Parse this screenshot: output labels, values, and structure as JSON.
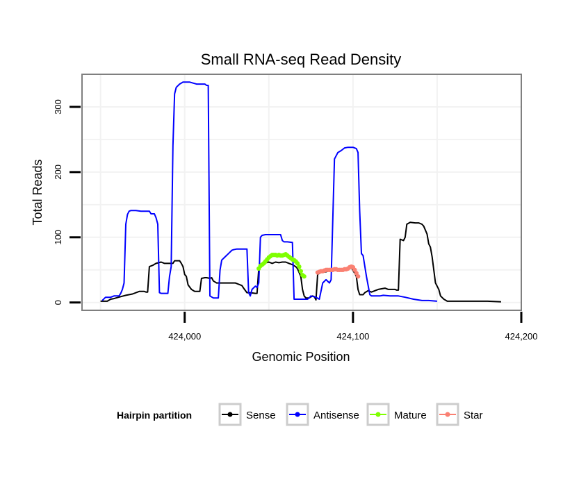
{
  "chart_data": {
    "type": "line",
    "title": "Small RNA-seq Read Density",
    "xlabel": "Genomic Position",
    "ylabel": "Total Reads",
    "xlim": [
      423939,
      424200
    ],
    "ylim": [
      -12,
      350
    ],
    "x_ticks": [
      424000,
      424100,
      424200
    ],
    "x_tick_labels": [
      "424,000",
      "424,100",
      "424,200"
    ],
    "y_ticks": [
      0,
      100,
      200,
      300
    ],
    "y_tick_labels": [
      "0",
      "100",
      "200",
      "300"
    ],
    "grid": true,
    "legend_title": "Hairpin partition",
    "legend_position": "bottom",
    "series": [
      {
        "name": "Sense",
        "color": "#000000",
        "points": [
          [
            423950,
            2
          ],
          [
            423954,
            2
          ],
          [
            423956,
            5
          ],
          [
            423958,
            6
          ],
          [
            423962,
            9
          ],
          [
            423965,
            11
          ],
          [
            423969,
            13
          ],
          [
            423973,
            17
          ],
          [
            423976,
            17
          ],
          [
            423977,
            16
          ],
          [
            423978,
            16
          ],
          [
            423979,
            55
          ],
          [
            423981,
            57
          ],
          [
            423983,
            60
          ],
          [
            423986,
            62
          ],
          [
            423988,
            60
          ],
          [
            423991,
            60
          ],
          [
            423993,
            60
          ],
          [
            423994,
            64
          ],
          [
            423997,
            64
          ],
          [
            423998,
            60
          ],
          [
            423999,
            55
          ],
          [
            424000,
            43
          ],
          [
            424001,
            40
          ],
          [
            424002,
            27
          ],
          [
            424004,
            20
          ],
          [
            424006,
            17
          ],
          [
            424009,
            17
          ],
          [
            424010,
            37
          ],
          [
            424012,
            38
          ],
          [
            424013,
            38
          ],
          [
            424015,
            37
          ],
          [
            424016,
            38
          ],
          [
            424017,
            33
          ],
          [
            424019,
            30
          ],
          [
            424023,
            30
          ],
          [
            424027,
            30
          ],
          [
            424030,
            30
          ],
          [
            424032,
            28
          ],
          [
            424034,
            26
          ],
          [
            424035,
            22
          ],
          [
            424037,
            15
          ],
          [
            424039,
            15
          ],
          [
            424042,
            14
          ],
          [
            424043,
            14
          ],
          [
            424044,
            52
          ],
          [
            424045,
            56
          ],
          [
            424047,
            60
          ],
          [
            424050,
            62
          ],
          [
            424052,
            60
          ],
          [
            424054,
            62
          ],
          [
            424056,
            61
          ],
          [
            424058,
            62
          ],
          [
            424060,
            62
          ],
          [
            424062,
            60
          ],
          [
            424064,
            58
          ],
          [
            424066,
            55
          ],
          [
            424067,
            52
          ],
          [
            424069,
            40
          ],
          [
            424070,
            20
          ],
          [
            424071,
            10
          ],
          [
            424072,
            7
          ],
          [
            424074,
            7
          ],
          [
            424076,
            10
          ],
          [
            424077,
            9
          ],
          [
            424078,
            4
          ],
          [
            424079,
            43
          ],
          [
            424081,
            46
          ],
          [
            424084,
            47
          ],
          [
            424087,
            50
          ],
          [
            424090,
            50
          ],
          [
            424093,
            50
          ],
          [
            424095,
            50
          ],
          [
            424096,
            50
          ],
          [
            424097,
            50
          ],
          [
            424099,
            54
          ],
          [
            424100,
            49
          ],
          [
            424101,
            45
          ],
          [
            424102,
            40
          ],
          [
            424103,
            20
          ],
          [
            424104,
            12
          ],
          [
            424106,
            12
          ],
          [
            424107,
            15
          ],
          [
            424109,
            18
          ],
          [
            424111,
            16
          ],
          [
            424113,
            18
          ],
          [
            424115,
            20
          ],
          [
            424117,
            21
          ],
          [
            424119,
            22
          ],
          [
            424121,
            20
          ],
          [
            424123,
            20
          ],
          [
            424125,
            20
          ],
          [
            424126,
            19
          ],
          [
            424127,
            19
          ],
          [
            424128,
            97
          ],
          [
            424130,
            95
          ],
          [
            424131,
            100
          ],
          [
            424132,
            120
          ],
          [
            424134,
            123
          ],
          [
            424137,
            122
          ],
          [
            424139,
            122
          ],
          [
            424141,
            120
          ],
          [
            424142,
            117
          ],
          [
            424144,
            105
          ],
          [
            424145,
            90
          ],
          [
            424146,
            85
          ],
          [
            424147,
            70
          ],
          [
            424148,
            50
          ],
          [
            424149,
            30
          ],
          [
            424151,
            20
          ],
          [
            424152,
            10
          ],
          [
            424154,
            5
          ],
          [
            424156,
            2
          ],
          [
            424160,
            2
          ],
          [
            424165,
            2
          ],
          [
            424170,
            2
          ],
          [
            424175,
            2
          ],
          [
            424180,
            2
          ],
          [
            424188,
            1
          ]
        ]
      },
      {
        "name": "Antisense",
        "color": "#0000ff",
        "points": [
          [
            423951,
            3
          ],
          [
            423953,
            8
          ],
          [
            423956,
            8
          ],
          [
            423958,
            10
          ],
          [
            423961,
            10
          ],
          [
            423962,
            14
          ],
          [
            423963,
            20
          ],
          [
            423964,
            30
          ],
          [
            423965,
            120
          ],
          [
            423966,
            135
          ],
          [
            423967,
            140
          ],
          [
            423968,
            141
          ],
          [
            423971,
            141
          ],
          [
            423974,
            140
          ],
          [
            423977,
            140
          ],
          [
            423979,
            140
          ],
          [
            423980,
            136
          ],
          [
            423982,
            136
          ],
          [
            423983,
            130
          ],
          [
            423984,
            120
          ],
          [
            423985,
            15
          ],
          [
            423986,
            14
          ],
          [
            423987,
            14
          ],
          [
            423990,
            14
          ],
          [
            423991,
            40
          ],
          [
            423992,
            55
          ],
          [
            423993,
            240
          ],
          [
            423994,
            320
          ],
          [
            423995,
            330
          ],
          [
            423997,
            335
          ],
          [
            423999,
            338
          ],
          [
            424003,
            338
          ],
          [
            424007,
            335
          ],
          [
            424012,
            335
          ],
          [
            424013,
            333
          ],
          [
            424014,
            333
          ],
          [
            424015,
            10
          ],
          [
            424017,
            7
          ],
          [
            424020,
            7
          ],
          [
            424021,
            50
          ],
          [
            424022,
            65
          ],
          [
            424024,
            70
          ],
          [
            424026,
            75
          ],
          [
            424028,
            80
          ],
          [
            424029,
            81
          ],
          [
            424031,
            82
          ],
          [
            424033,
            82
          ],
          [
            424036,
            82
          ],
          [
            424037,
            82
          ],
          [
            424038,
            15
          ],
          [
            424039,
            10
          ],
          [
            424040,
            20
          ],
          [
            424042,
            25
          ],
          [
            424043,
            23
          ],
          [
            424044,
            30
          ],
          [
            424045,
            100
          ],
          [
            424046,
            103
          ],
          [
            424048,
            104
          ],
          [
            424051,
            104
          ],
          [
            424053,
            104
          ],
          [
            424055,
            104
          ],
          [
            424057,
            104
          ],
          [
            424058,
            95
          ],
          [
            424059,
            93
          ],
          [
            424061,
            93
          ],
          [
            424064,
            92
          ],
          [
            424065,
            5
          ],
          [
            424067,
            5
          ],
          [
            424070,
            5
          ],
          [
            424072,
            5
          ],
          [
            424073,
            5
          ],
          [
            424074,
            7
          ],
          [
            424075,
            10
          ],
          [
            424078,
            8
          ],
          [
            424080,
            5
          ],
          [
            424082,
            30
          ],
          [
            424084,
            35
          ],
          [
            424086,
            30
          ],
          [
            424087,
            35
          ],
          [
            424089,
            220
          ],
          [
            424091,
            230
          ],
          [
            424093,
            233
          ],
          [
            424095,
            237
          ],
          [
            424097,
            238
          ],
          [
            424100,
            238
          ],
          [
            424102,
            236
          ],
          [
            424103,
            230
          ],
          [
            424104,
            140
          ],
          [
            424105,
            75
          ],
          [
            424106,
            72
          ],
          [
            424108,
            40
          ],
          [
            424110,
            12
          ],
          [
            424111,
            10
          ],
          [
            424113,
            10
          ],
          [
            424116,
            10
          ],
          [
            424118,
            11
          ],
          [
            424122,
            10
          ],
          [
            424125,
            10
          ],
          [
            424127,
            10
          ],
          [
            424131,
            8
          ],
          [
            424136,
            5
          ],
          [
            424141,
            3
          ],
          [
            424145,
            3
          ],
          [
            424150,
            2
          ]
        ]
      },
      {
        "name": "Mature",
        "color": "#7fff00",
        "points": [
          [
            424044,
            52
          ],
          [
            424045,
            56
          ],
          [
            424046,
            58
          ],
          [
            424047,
            60
          ],
          [
            424048,
            63
          ],
          [
            424049,
            66
          ],
          [
            424050,
            69
          ],
          [
            424051,
            71
          ],
          [
            424052,
            73
          ],
          [
            424053,
            73
          ],
          [
            424054,
            73
          ],
          [
            424055,
            72
          ],
          [
            424056,
            73
          ],
          [
            424057,
            72
          ],
          [
            424058,
            72
          ],
          [
            424059,
            73
          ],
          [
            424060,
            74
          ],
          [
            424061,
            72
          ],
          [
            424062,
            70
          ],
          [
            424063,
            68
          ],
          [
            424064,
            66
          ],
          [
            424065,
            65
          ],
          [
            424066,
            63
          ],
          [
            424067,
            60
          ],
          [
            424068,
            55
          ],
          [
            424069,
            48
          ],
          [
            424070,
            42
          ],
          [
            424071,
            40
          ]
        ]
      },
      {
        "name": "Star",
        "color": "#fa8072",
        "points": [
          [
            424079,
            46
          ],
          [
            424080,
            47
          ],
          [
            424081,
            48
          ],
          [
            424082,
            48
          ],
          [
            424083,
            49
          ],
          [
            424084,
            50
          ],
          [
            424085,
            50
          ],
          [
            424086,
            50
          ],
          [
            424087,
            50
          ],
          [
            424088,
            50
          ],
          [
            424089,
            51
          ],
          [
            424090,
            51
          ],
          [
            424091,
            50
          ],
          [
            424092,
            50
          ],
          [
            424093,
            50
          ],
          [
            424094,
            50
          ],
          [
            424095,
            51
          ],
          [
            424096,
            51
          ],
          [
            424097,
            52
          ],
          [
            424098,
            54
          ],
          [
            424099,
            55
          ],
          [
            424100,
            54
          ],
          [
            424101,
            50
          ],
          [
            424102,
            45
          ],
          [
            424103,
            40
          ]
        ]
      }
    ]
  }
}
